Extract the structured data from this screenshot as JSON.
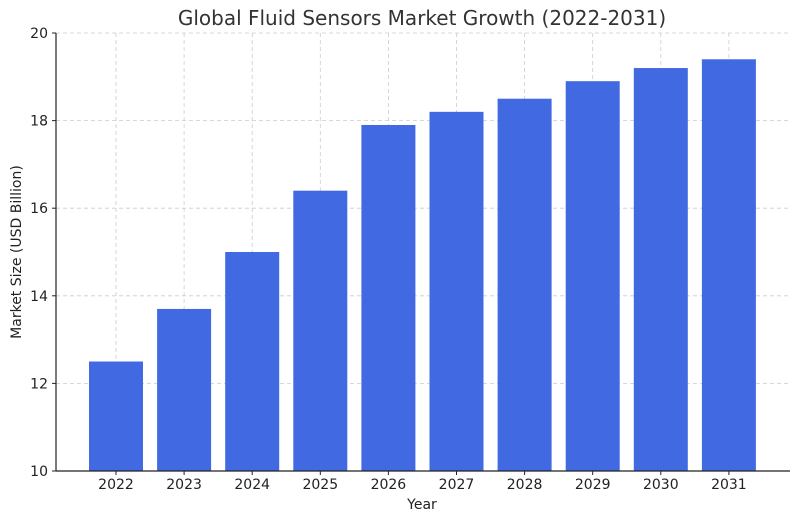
{
  "chart_data": {
    "type": "bar",
    "title": "Global Fluid Sensors Market Growth (2022-2031)",
    "xlabel": "Year",
    "ylabel": "Market Size (USD Billion)",
    "categories": [
      "2022",
      "2023",
      "2024",
      "2025",
      "2026",
      "2027",
      "2028",
      "2029",
      "2030",
      "2031"
    ],
    "values": [
      12.5,
      13.7,
      15.0,
      16.4,
      17.9,
      18.2,
      18.5,
      18.9,
      19.2,
      19.4
    ],
    "ylim": [
      10,
      20
    ],
    "yticks": [
      "10",
      "12",
      "14",
      "16",
      "18",
      "20"
    ],
    "grid": true,
    "bar_color": "#4169e1"
  }
}
